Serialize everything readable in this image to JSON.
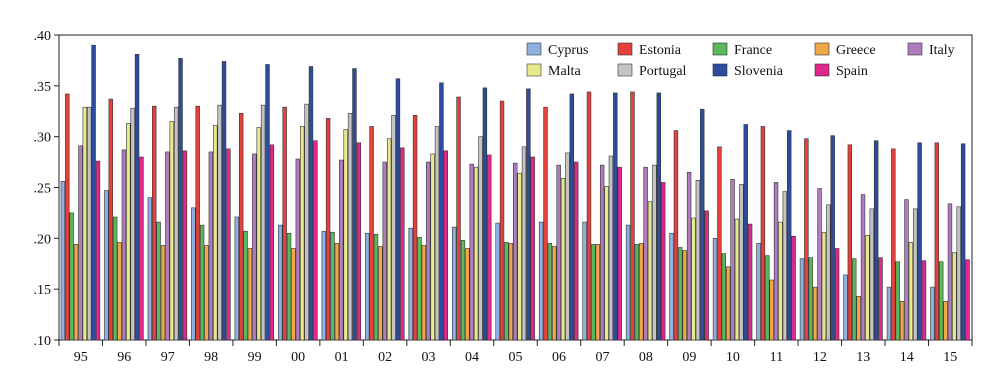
{
  "chart_data": {
    "type": "bar",
    "title": "",
    "xlabel": "",
    "ylabel": "",
    "categories": [
      "95",
      "96",
      "97",
      "98",
      "99",
      "00",
      "01",
      "02",
      "03",
      "04",
      "05",
      "06",
      "07",
      "08",
      "09",
      "10",
      "11",
      "12",
      "13",
      "14",
      "15"
    ],
    "ylim": [
      0.1,
      0.4
    ],
    "yticks": [
      0.1,
      0.15,
      0.2,
      0.25,
      0.3,
      0.35,
      0.4
    ],
    "ytick_labels": [
      ".10",
      ".15",
      ".20",
      ".25",
      ".30",
      ".35",
      ".40"
    ],
    "grid": false,
    "legend_position": "top-right",
    "series": [
      {
        "name": "Cyprus",
        "color": "#8fb0e0",
        "values": [
          0.256,
          0.247,
          0.24,
          0.23,
          0.221,
          0.213,
          0.207,
          0.205,
          0.21,
          0.211,
          0.215,
          0.216,
          0.216,
          0.213,
          0.205,
          0.2,
          0.195,
          0.18,
          0.164,
          0.152,
          0.152
        ]
      },
      {
        "name": "Estonia",
        "color": "#e6403d",
        "values": [
          0.342,
          0.337,
          0.33,
          0.33,
          0.323,
          0.329,
          0.318,
          0.31,
          0.321,
          0.339,
          0.335,
          0.329,
          0.344,
          0.344,
          0.306,
          0.29,
          0.31,
          0.298,
          0.292,
          0.288,
          0.294
        ]
      },
      {
        "name": "France",
        "color": "#5cb85c",
        "values": [
          0.225,
          0.221,
          0.216,
          0.213,
          0.207,
          0.205,
          0.206,
          0.204,
          0.201,
          0.198,
          0.196,
          0.195,
          0.194,
          0.194,
          0.191,
          0.185,
          0.183,
          0.181,
          0.18,
          0.177,
          0.177
        ]
      },
      {
        "name": "Greece",
        "color": "#f0a848",
        "values": [
          0.194,
          0.196,
          0.193,
          0.193,
          0.19,
          0.19,
          0.195,
          0.192,
          0.193,
          0.19,
          0.195,
          0.192,
          0.194,
          0.195,
          0.188,
          0.172,
          0.159,
          0.152,
          0.143,
          0.138,
          0.138
        ]
      },
      {
        "name": "Italy",
        "color": "#b07cc0",
        "values": [
          0.291,
          0.287,
          0.285,
          0.285,
          0.283,
          0.278,
          0.277,
          0.275,
          0.275,
          0.273,
          0.274,
          0.272,
          0.272,
          0.27,
          0.265,
          0.258,
          0.255,
          0.249,
          0.243,
          0.238,
          0.234
        ]
      },
      {
        "name": "Malta",
        "color": "#e8e88c",
        "values": [
          0.329,
          0.313,
          0.315,
          0.311,
          0.309,
          0.31,
          0.307,
          0.298,
          0.283,
          0.27,
          0.264,
          0.259,
          0.251,
          0.236,
          0.22,
          0.219,
          0.216,
          0.206,
          0.203,
          0.196,
          0.186
        ]
      },
      {
        "name": "Portugal",
        "color": "#c4c4c4",
        "values": [
          0.329,
          0.328,
          0.329,
          0.331,
          0.331,
          0.332,
          0.323,
          0.321,
          0.31,
          0.3,
          0.29,
          0.284,
          0.281,
          0.272,
          0.257,
          0.253,
          0.246,
          0.233,
          0.229,
          0.229,
          0.231
        ]
      },
      {
        "name": "Slovenia",
        "color": "#2e4c9c",
        "values": [
          0.39,
          0.381,
          0.377,
          0.374,
          0.371,
          0.369,
          0.367,
          0.357,
          0.353,
          0.348,
          0.347,
          0.342,
          0.343,
          0.343,
          0.327,
          0.312,
          0.306,
          0.301,
          0.296,
          0.294,
          0.293
        ]
      },
      {
        "name": "Spain",
        "color": "#e0288a",
        "values": [
          0.276,
          0.28,
          0.286,
          0.288,
          0.292,
          0.296,
          0.294,
          0.289,
          0.286,
          0.282,
          0.28,
          0.275,
          0.27,
          0.255,
          0.227,
          0.214,
          0.202,
          0.19,
          0.181,
          0.178,
          0.179
        ]
      }
    ]
  }
}
